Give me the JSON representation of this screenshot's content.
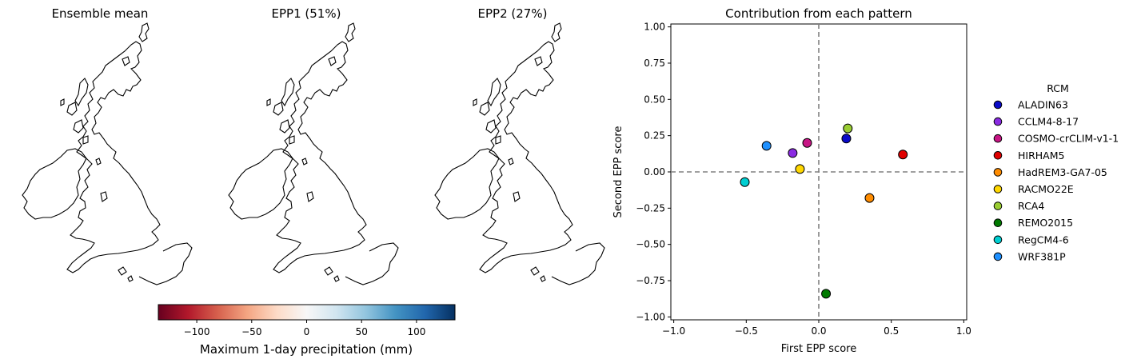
{
  "maps": [
    {
      "title": "Ensemble mean",
      "style": "mean"
    },
    {
      "title": "EPP1 (51%)",
      "style": "epp1"
    },
    {
      "title": "EPP2 (27%)",
      "style": "epp2"
    }
  ],
  "colorbar": {
    "label": "Maximum 1-day precipitation (mm)",
    "range": [
      -135,
      135
    ],
    "ticks": [
      -100,
      -50,
      0,
      50,
      100
    ],
    "tick_labels": [
      "−100",
      "−50",
      "0",
      "50",
      "100"
    ],
    "colormap": "RdBu"
  },
  "colors": {
    "dashed_line": "#808080",
    "coast": "#000000"
  },
  "chart_data": {
    "type": "scatter",
    "title": "Contribution from each pattern",
    "xlabel": "First EPP score",
    "ylabel": "Second EPP score",
    "xlim": [
      -1.02,
      1.02
    ],
    "ylim": [
      -1.02,
      1.02
    ],
    "xticks": [
      -1.0,
      -0.5,
      0.0,
      0.5,
      1.0
    ],
    "xtick_labels": [
      "−1.0",
      "−0.5",
      "0.0",
      "0.5",
      "1.0"
    ],
    "yticks": [
      1.0,
      0.75,
      0.5,
      0.25,
      0.0,
      -0.25,
      -0.5,
      -0.75,
      -1.0
    ],
    "ytick_labels": [
      "1.00",
      "0.75",
      "0.50",
      "0.25",
      "0.00",
      "−0.25",
      "−0.50",
      "−0.75",
      "−1.00"
    ],
    "grid": false,
    "reference_lines": {
      "x": 0,
      "y": 0,
      "style": "dashed"
    },
    "legend": {
      "title": "RCM",
      "placement": "right"
    },
    "series": [
      {
        "name": "ALADIN63",
        "x": 0.19,
        "y": 0.23,
        "color": "#0a0ac8"
      },
      {
        "name": "CCLM4-8-17",
        "x": -0.18,
        "y": 0.13,
        "color": "#8a2be2"
      },
      {
        "name": "COSMO-crCLIM-v1-1",
        "x": -0.08,
        "y": 0.2,
        "color": "#c71585"
      },
      {
        "name": "HIRHAM5",
        "x": 0.58,
        "y": 0.12,
        "color": "#e00000"
      },
      {
        "name": "HadREM3-GA7-05",
        "x": 0.35,
        "y": -0.18,
        "color": "#ff8c00"
      },
      {
        "name": "RACMO22E",
        "x": -0.13,
        "y": 0.02,
        "color": "#ffd700"
      },
      {
        "name": "RCA4",
        "x": 0.2,
        "y": 0.3,
        "color": "#9acd32"
      },
      {
        "name": "REMO2015",
        "x": 0.05,
        "y": -0.84,
        "color": "#007a00"
      },
      {
        "name": "RegCM4-6",
        "x": -0.51,
        "y": -0.07,
        "color": "#00ced1"
      },
      {
        "name": "WRF381P",
        "x": -0.36,
        "y": 0.18,
        "color": "#1e90ff"
      }
    ]
  }
}
